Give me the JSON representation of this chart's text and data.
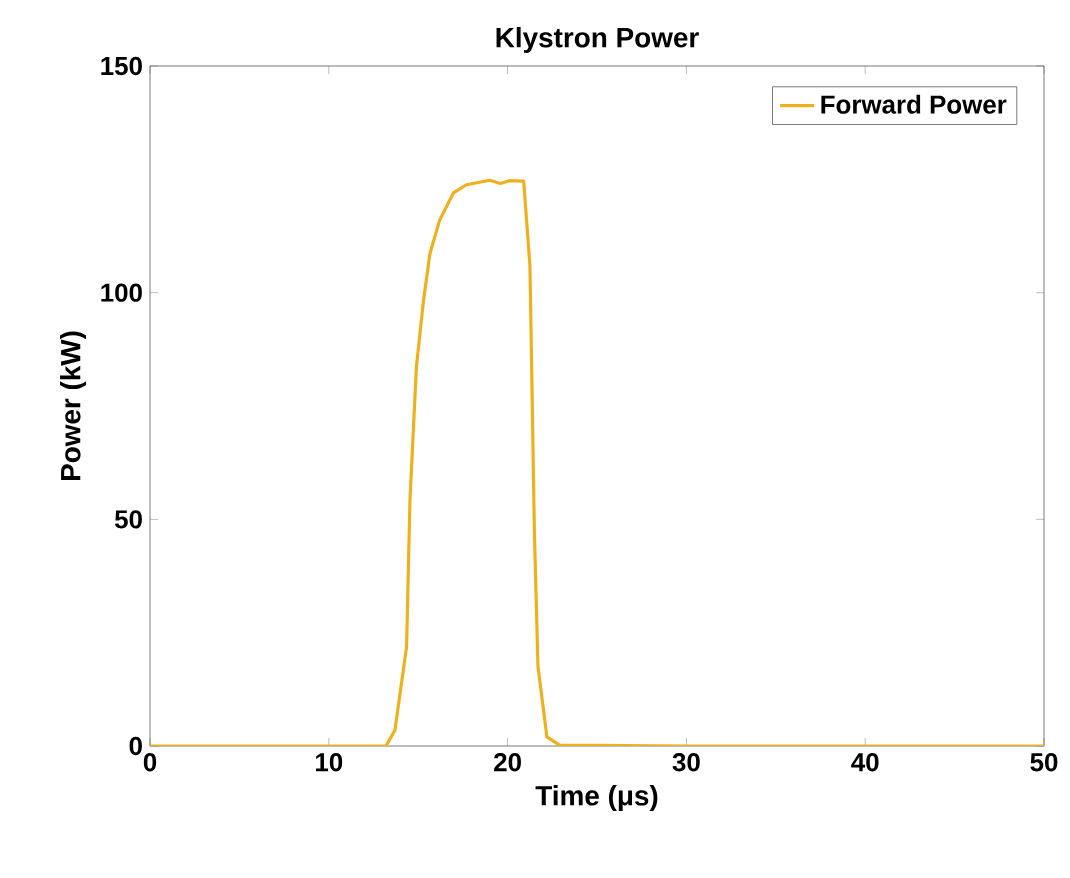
{
  "chart_data": {
    "type": "line",
    "title": "Klystron Power",
    "xlabel": "Time (μs)",
    "ylabel": "Power (kW)",
    "xlim": [
      0,
      50
    ],
    "ylim": [
      0,
      150
    ],
    "xticks": [
      0,
      10,
      20,
      30,
      40,
      50
    ],
    "yticks": [
      0,
      50,
      100,
      150
    ],
    "legend": "top right",
    "grid": false,
    "series": [
      {
        "name": "Forward Power",
        "color": "#edb120",
        "x": [
          0,
          5,
          10,
          13.2,
          13.7,
          14.35,
          14.54,
          14.9,
          15.3,
          15.66,
          16.2,
          16.97,
          17.7,
          19.0,
          19.6,
          20.1,
          20.9,
          21.25,
          21.5,
          21.7,
          22.2,
          22.9,
          30,
          40,
          50
        ],
        "values": [
          0,
          0,
          0,
          0,
          3.5,
          21.9,
          54.3,
          83.7,
          98.4,
          108.7,
          116,
          122,
          123.8,
          124.8,
          124.1,
          124.7,
          124.6,
          105.9,
          47,
          17.5,
          2,
          0.2,
          0,
          0,
          0
        ]
      }
    ]
  }
}
